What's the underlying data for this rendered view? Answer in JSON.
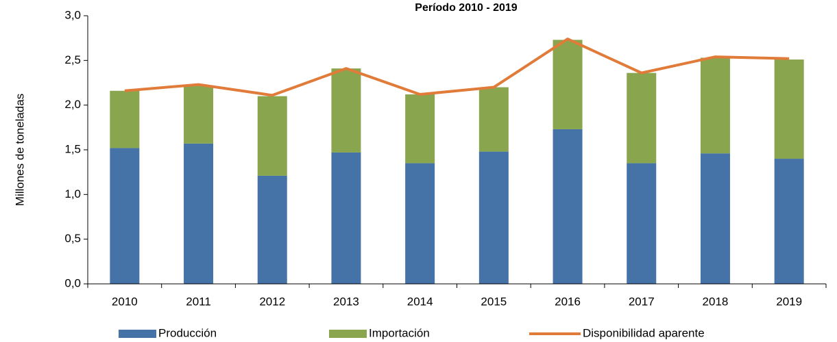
{
  "chart_data": {
    "type": "stacked_bar_line",
    "title": "Período 2010 - 2019",
    "y_label": "Millones de toneladas",
    "categories": [
      "2010",
      "2011",
      "2012",
      "2013",
      "2014",
      "2015",
      "2016",
      "2017",
      "2018",
      "2019"
    ],
    "series": [
      {
        "name": "Producción",
        "color": "#4572a7",
        "kind": "bar",
        "values": [
          1.52,
          1.57,
          1.21,
          1.47,
          1.35,
          1.48,
          1.73,
          1.35,
          1.46,
          1.4
        ]
      },
      {
        "name": "Importación",
        "color": "#89a54e",
        "kind": "bar",
        "values": [
          0.64,
          0.65,
          0.89,
          0.94,
          0.77,
          0.72,
          1.0,
          1.01,
          1.07,
          1.11
        ]
      },
      {
        "name": "Disponibilidad aparente",
        "color": "#e07b39",
        "kind": "line",
        "values": [
          2.16,
          2.23,
          2.11,
          2.41,
          2.12,
          2.2,
          2.74,
          2.36,
          2.54,
          2.52
        ]
      }
    ],
    "ylim": [
      0,
      3
    ],
    "yticks": [
      {
        "value": 0,
        "label": "0,0"
      },
      {
        "value": 0.5,
        "label": "0,5"
      },
      {
        "value": 1,
        "label": "1,0"
      },
      {
        "value": 1.5,
        "label": "1,5"
      },
      {
        "value": 2,
        "label": "2,0"
      },
      {
        "value": 2.5,
        "label": "2,5"
      },
      {
        "value": 3,
        "label": "3,0"
      }
    ],
    "legend": "bottom"
  }
}
